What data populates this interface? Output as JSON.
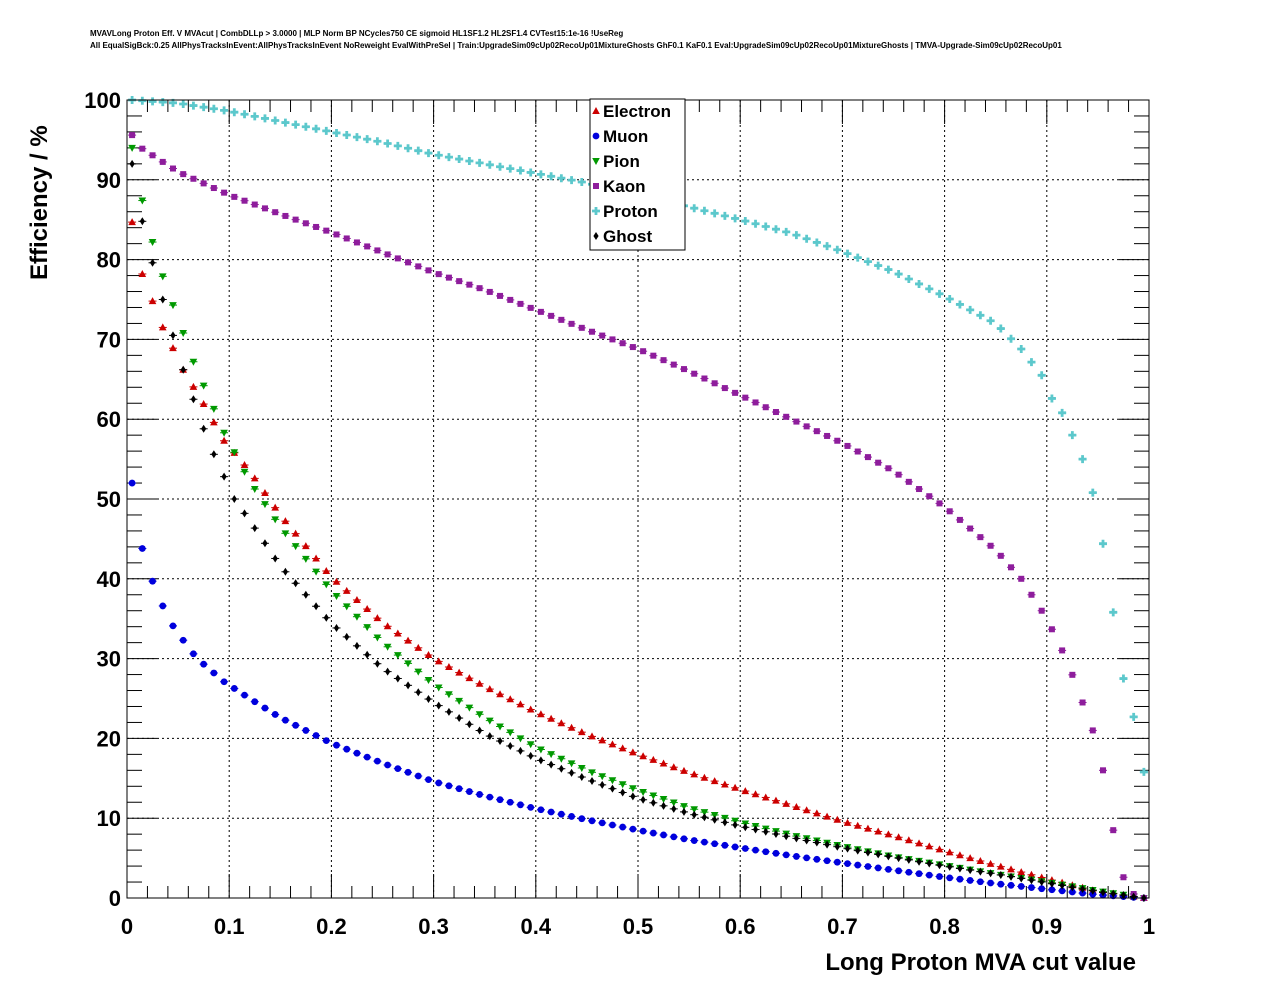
{
  "header": {
    "line1": "MVAVLong Proton Eff. V MVAcut | CombDLLp > 3.0000 | MLP Norm BP NCycles750 CE sigmoid HL1SF1.2 HL2SF1.4 CVTest15:1e-16 !UseReg",
    "line2": "All EqualSigBck:0.25 AllPhysTracksInEvent:AllPhysTracksInEvent NoReweight EvalWithPreSel | Train:UpgradeSim09cUp02RecoUp01MixtureGhosts GhF0.1 KaF0.1 Eval:UpgradeSim09cUp02RecoUp01MixtureGhosts | TMVA-Upgrade-Sim09cUp02RecoUp01"
  },
  "chart_data": {
    "type": "scatter",
    "xlabel": "Long Proton MVA cut value",
    "ylabel": "Efficiency / %",
    "xlim": [
      0,
      1
    ],
    "ylim": [
      0,
      100
    ],
    "xticks": [
      "0",
      "0.1",
      "0.2",
      "0.3",
      "0.4",
      "0.5",
      "0.6",
      "0.7",
      "0.8",
      "0.9",
      "1"
    ],
    "yticks": [
      "0",
      "10",
      "20",
      "30",
      "40",
      "50",
      "60",
      "70",
      "80",
      "90",
      "100"
    ],
    "grid": true,
    "legend_position": "top-center",
    "x_start": 0.005,
    "x_step": 0.01,
    "series": [
      {
        "name": "Electron",
        "marker": "triangle-up",
        "color": "#cc0000",
        "anchors": [
          [
            0.005,
            84.7
          ],
          [
            0.015,
            78.2
          ],
          [
            0.025,
            74.8
          ],
          [
            0.035,
            71.5
          ],
          [
            0.045,
            68.9
          ],
          [
            0.055,
            66.2
          ],
          [
            0.075,
            61.9
          ],
          [
            0.095,
            57.3
          ],
          [
            0.12,
            53.5
          ],
          [
            0.15,
            48
          ],
          [
            0.2,
            40.2
          ],
          [
            0.25,
            34.5
          ],
          [
            0.3,
            30
          ],
          [
            0.35,
            26.5
          ],
          [
            0.4,
            23.3
          ],
          [
            0.45,
            20.5
          ],
          [
            0.5,
            18
          ],
          [
            0.55,
            15.7
          ],
          [
            0.6,
            13.6
          ],
          [
            0.65,
            11.6
          ],
          [
            0.7,
            9.6
          ],
          [
            0.75,
            7.8
          ],
          [
            0.8,
            5.9
          ],
          [
            0.85,
            4.1
          ],
          [
            0.9,
            2.4
          ],
          [
            0.95,
            0.8
          ],
          [
            0.995,
            0
          ]
        ]
      },
      {
        "name": "Muon",
        "marker": "circle",
        "color": "#0000dd",
        "anchors": [
          [
            0.005,
            52
          ],
          [
            0.015,
            43.8
          ],
          [
            0.025,
            39.7
          ],
          [
            0.035,
            36.6
          ],
          [
            0.045,
            34.1
          ],
          [
            0.055,
            32.3
          ],
          [
            0.065,
            30.6
          ],
          [
            0.075,
            29.3
          ],
          [
            0.095,
            27.1
          ],
          [
            0.12,
            25
          ],
          [
            0.15,
            22.6
          ],
          [
            0.2,
            19.4
          ],
          [
            0.25,
            16.9
          ],
          [
            0.3,
            14.6
          ],
          [
            0.35,
            12.8
          ],
          [
            0.4,
            11.2
          ],
          [
            0.45,
            9.8
          ],
          [
            0.5,
            8.5
          ],
          [
            0.55,
            7.3
          ],
          [
            0.6,
            6.3
          ],
          [
            0.65,
            5.3
          ],
          [
            0.7,
            4.4
          ],
          [
            0.75,
            3.5
          ],
          [
            0.8,
            2.6
          ],
          [
            0.85,
            1.8
          ],
          [
            0.9,
            1.1
          ],
          [
            0.95,
            0.4
          ],
          [
            0.995,
            0
          ]
        ]
      },
      {
        "name": "Pion",
        "marker": "triangle-down",
        "color": "#009900",
        "anchors": [
          [
            0.005,
            94
          ],
          [
            0.015,
            87.4
          ],
          [
            0.025,
            82.2
          ],
          [
            0.035,
            77.9
          ],
          [
            0.045,
            74.3
          ],
          [
            0.055,
            70.8
          ],
          [
            0.065,
            67.2
          ],
          [
            0.075,
            64.2
          ],
          [
            0.085,
            61.3
          ],
          [
            0.095,
            58.3
          ],
          [
            0.12,
            52.2
          ],
          [
            0.15,
            46.5
          ],
          [
            0.2,
            38.5
          ],
          [
            0.25,
            32
          ],
          [
            0.3,
            26.8
          ],
          [
            0.35,
            22.6
          ],
          [
            0.4,
            18.9
          ],
          [
            0.45,
            16
          ],
          [
            0.5,
            13.5
          ],
          [
            0.55,
            11.3
          ],
          [
            0.6,
            9.5
          ],
          [
            0.65,
            7.9
          ],
          [
            0.7,
            6.5
          ],
          [
            0.75,
            5.2
          ],
          [
            0.8,
            4.1
          ],
          [
            0.85,
            3
          ],
          [
            0.9,
            2
          ],
          [
            0.95,
            0.9
          ],
          [
            0.995,
            0
          ]
        ]
      },
      {
        "name": "Kaon",
        "marker": "square",
        "color": "#8e1d9c",
        "anchors": [
          [
            0.005,
            95.6
          ],
          [
            0.015,
            93.9
          ],
          [
            0.05,
            91
          ],
          [
            0.1,
            88.1
          ],
          [
            0.15,
            85.7
          ],
          [
            0.2,
            83.4
          ],
          [
            0.25,
            80.9
          ],
          [
            0.3,
            78.4
          ],
          [
            0.35,
            76.2
          ],
          [
            0.4,
            73.7
          ],
          [
            0.45,
            71.2
          ],
          [
            0.5,
            68.8
          ],
          [
            0.55,
            66
          ],
          [
            0.6,
            63
          ],
          [
            0.65,
            60
          ],
          [
            0.7,
            57
          ],
          [
            0.75,
            53.5
          ],
          [
            0.8,
            49
          ],
          [
            0.85,
            43.6
          ],
          [
            0.875,
            40
          ],
          [
            0.9,
            35
          ],
          [
            0.92,
            29.7
          ],
          [
            0.935,
            24.5
          ],
          [
            0.945,
            21
          ],
          [
            0.955,
            16
          ],
          [
            0.965,
            8.5
          ],
          [
            0.975,
            2.6
          ],
          [
            0.985,
            0.5
          ],
          [
            0.995,
            0
          ]
        ]
      },
      {
        "name": "Proton",
        "marker": "cross",
        "color": "#5cc8cc",
        "anchors": [
          [
            0.005,
            100
          ],
          [
            0.05,
            99.6
          ],
          [
            0.1,
            98.6
          ],
          [
            0.15,
            97.3
          ],
          [
            0.2,
            96
          ],
          [
            0.25,
            94.7
          ],
          [
            0.3,
            93.2
          ],
          [
            0.35,
            92
          ],
          [
            0.4,
            90.8
          ],
          [
            0.45,
            89.6
          ],
          [
            0.5,
            88
          ],
          [
            0.55,
            86.6
          ],
          [
            0.6,
            85
          ],
          [
            0.65,
            83.3
          ],
          [
            0.7,
            81
          ],
          [
            0.75,
            78.5
          ],
          [
            0.8,
            75.4
          ],
          [
            0.85,
            72
          ],
          [
            0.875,
            68.8
          ],
          [
            0.895,
            65.5
          ],
          [
            0.905,
            62.6
          ],
          [
            0.915,
            60.8
          ],
          [
            0.925,
            58
          ],
          [
            0.935,
            55
          ],
          [
            0.945,
            50.8
          ],
          [
            0.955,
            44.4
          ],
          [
            0.965,
            35.8
          ],
          [
            0.975,
            27.5
          ],
          [
            0.985,
            22.7
          ],
          [
            0.995,
            15.8
          ]
        ]
      },
      {
        "name": "Ghost",
        "marker": "diamond",
        "color": "#000000",
        "anchors": [
          [
            0.005,
            92
          ],
          [
            0.015,
            84.8
          ],
          [
            0.025,
            79.6
          ],
          [
            0.035,
            75
          ],
          [
            0.045,
            70.5
          ],
          [
            0.055,
            66.2
          ],
          [
            0.065,
            62.5
          ],
          [
            0.075,
            58.8
          ],
          [
            0.085,
            55.6
          ],
          [
            0.095,
            52.8
          ],
          [
            0.105,
            50
          ],
          [
            0.12,
            47.3
          ],
          [
            0.15,
            41.6
          ],
          [
            0.2,
            34.4
          ],
          [
            0.25,
            28.8
          ],
          [
            0.3,
            24.5
          ],
          [
            0.35,
            20.6
          ],
          [
            0.4,
            17.5
          ],
          [
            0.45,
            14.9
          ],
          [
            0.5,
            12.5
          ],
          [
            0.55,
            10.6
          ],
          [
            0.6,
            9
          ],
          [
            0.65,
            7.6
          ],
          [
            0.7,
            6.3
          ],
          [
            0.75,
            5.1
          ],
          [
            0.8,
            4
          ],
          [
            0.85,
            3
          ],
          [
            0.9,
            1.9
          ],
          [
            0.95,
            0.8
          ],
          [
            0.995,
            0
          ]
        ]
      }
    ]
  }
}
